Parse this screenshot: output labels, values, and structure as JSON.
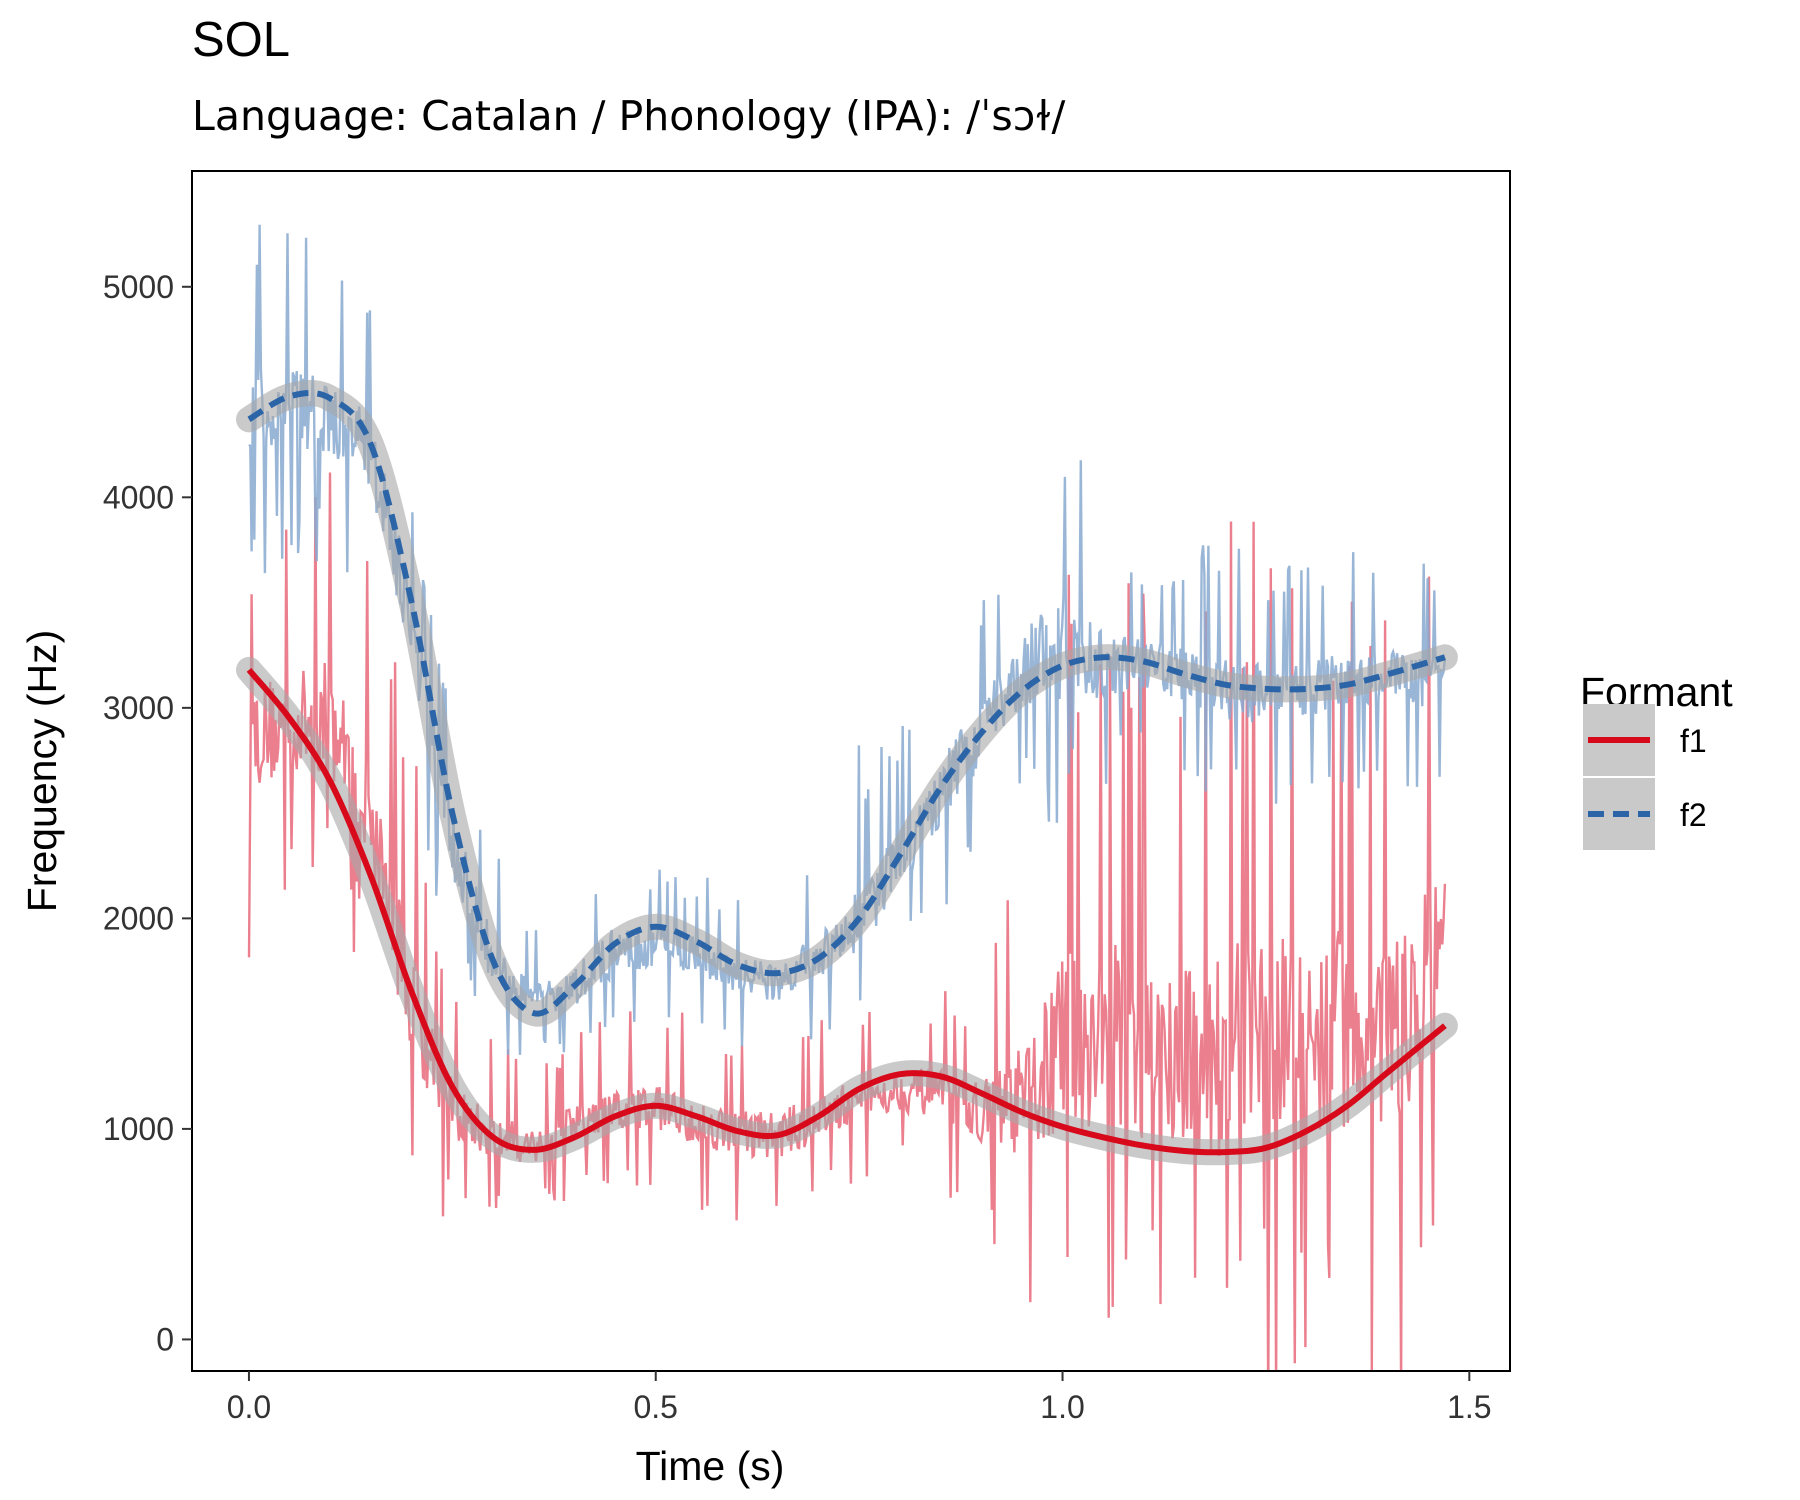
{
  "chart_data": {
    "type": "line",
    "title": "SOL",
    "subtitle": "Language: Catalan / Phonology (IPA): /ˈsɔɫ/",
    "xlabel": "Time (s)",
    "ylabel": "Frequency (Hz)",
    "xlim": [
      -0.07,
      1.55
    ],
    "ylim": [
      -150,
      5550
    ],
    "x_ticks": [
      0.0,
      0.5,
      1.0,
      1.5
    ],
    "x_tick_labels": [
      "0.0",
      "0.5",
      "1.0",
      "1.5"
    ],
    "y_ticks": [
      0,
      1000,
      2000,
      3000,
      4000,
      5000
    ],
    "y_tick_labels": [
      "0",
      "1000",
      "2000",
      "3000",
      "4000",
      "5000"
    ],
    "grid": false,
    "legend": {
      "title": "Formant",
      "position": "right",
      "entries": [
        "f1",
        "f2"
      ]
    },
    "series": [
      {
        "name": "f1",
        "color": "#d7091a",
        "raw_color": "#e8697a",
        "linestyle": "solid",
        "smooth": {
          "x": [
            0.0,
            0.05,
            0.1,
            0.15,
            0.2,
            0.25,
            0.3,
            0.35,
            0.4,
            0.45,
            0.5,
            0.55,
            0.6,
            0.65,
            0.7,
            0.75,
            0.8,
            0.85,
            0.9,
            0.95,
            1.0,
            1.05,
            1.1,
            1.15,
            1.2,
            1.25,
            1.3,
            1.35,
            1.4,
            1.47
          ],
          "y": [
            3180,
            2950,
            2650,
            2200,
            1650,
            1200,
            960,
            900,
            960,
            1060,
            1110,
            1060,
            990,
            970,
            1060,
            1190,
            1260,
            1250,
            1170,
            1080,
            1010,
            960,
            920,
            895,
            890,
            910,
            990,
            1110,
            1270,
            1490
          ]
        },
        "raw_envelope": {
          "x": [
            0.0,
            0.05,
            0.1,
            0.15,
            0.2,
            0.25,
            0.3,
            0.35,
            0.4,
            0.45,
            0.5,
            0.55,
            0.6,
            0.65,
            0.7,
            0.75,
            0.8,
            0.85,
            0.9,
            0.95,
            1.0,
            1.05,
            1.1,
            1.15,
            1.2,
            1.25,
            1.3,
            1.35,
            1.4,
            1.47
          ],
          "low": [
            2100,
            2300,
            2400,
            2000,
            900,
            700,
            700,
            700,
            800,
            800,
            850,
            750,
            700,
            700,
            750,
            900,
            900,
            850,
            700,
            500,
            500,
            500,
            500,
            400,
            350,
            350,
            400,
            400,
            400,
            600
          ],
          "high": [
            3600,
            3700,
            4000,
            3400,
            2500,
            1500,
            1300,
            1250,
            1350,
            1450,
            1450,
            1400,
            1350,
            1350,
            1400,
            1450,
            1500,
            1500,
            1500,
            2000,
            3000,
            3200,
            3000,
            3000,
            3200,
            3300,
            3300,
            3200,
            3200,
            3400
          ]
        }
      },
      {
        "name": "f2",
        "color": "#2b65a8",
        "raw_color": "#88a9d0",
        "linestyle": "dashed",
        "smooth": {
          "x": [
            0.0,
            0.05,
            0.1,
            0.15,
            0.2,
            0.25,
            0.3,
            0.35,
            0.4,
            0.45,
            0.5,
            0.55,
            0.6,
            0.65,
            0.7,
            0.75,
            0.8,
            0.85,
            0.9,
            0.95,
            1.0,
            1.05,
            1.1,
            1.15,
            1.2,
            1.25,
            1.3,
            1.35,
            1.4,
            1.47
          ],
          "y": [
            4370,
            4480,
            4470,
            4250,
            3500,
            2500,
            1800,
            1550,
            1680,
            1880,
            1960,
            1890,
            1780,
            1740,
            1810,
            2000,
            2300,
            2620,
            2880,
            3080,
            3200,
            3240,
            3220,
            3160,
            3110,
            3090,
            3090,
            3110,
            3160,
            3240
          ]
        },
        "raw_envelope": {
          "x": [
            0.0,
            0.05,
            0.1,
            0.15,
            0.2,
            0.25,
            0.3,
            0.35,
            0.4,
            0.45,
            0.5,
            0.55,
            0.6,
            0.65,
            0.7,
            0.75,
            0.8,
            0.85,
            0.9,
            0.95,
            1.0,
            1.05,
            1.1,
            1.15,
            1.2,
            1.25,
            1.3,
            1.35,
            1.4,
            1.47
          ],
          "low": [
            3800,
            3900,
            3900,
            3700,
            2900,
            1900,
            1500,
            1400,
            1450,
            1500,
            1600,
            1550,
            1450,
            1450,
            1500,
            1600,
            1900,
            2200,
            2500,
            2800,
            2700,
            2800,
            2900,
            2800,
            2700,
            2700,
            2750,
            2800,
            2800,
            2750
          ],
          "high": [
            5150,
            5050,
            4900,
            4850,
            3900,
            2800,
            2200,
            1900,
            1950,
            2300,
            2150,
            2100,
            2000,
            2000,
            2200,
            2600,
            2700,
            3100,
            3400,
            3800,
            4200,
            3700,
            3600,
            3600,
            3600,
            3500,
            3500,
            3600,
            3550,
            3600
          ]
        }
      }
    ],
    "colors": {
      "f1": "#d7091a",
      "f2": "#2b65a8",
      "ribbon": "#a6a6a6"
    }
  }
}
